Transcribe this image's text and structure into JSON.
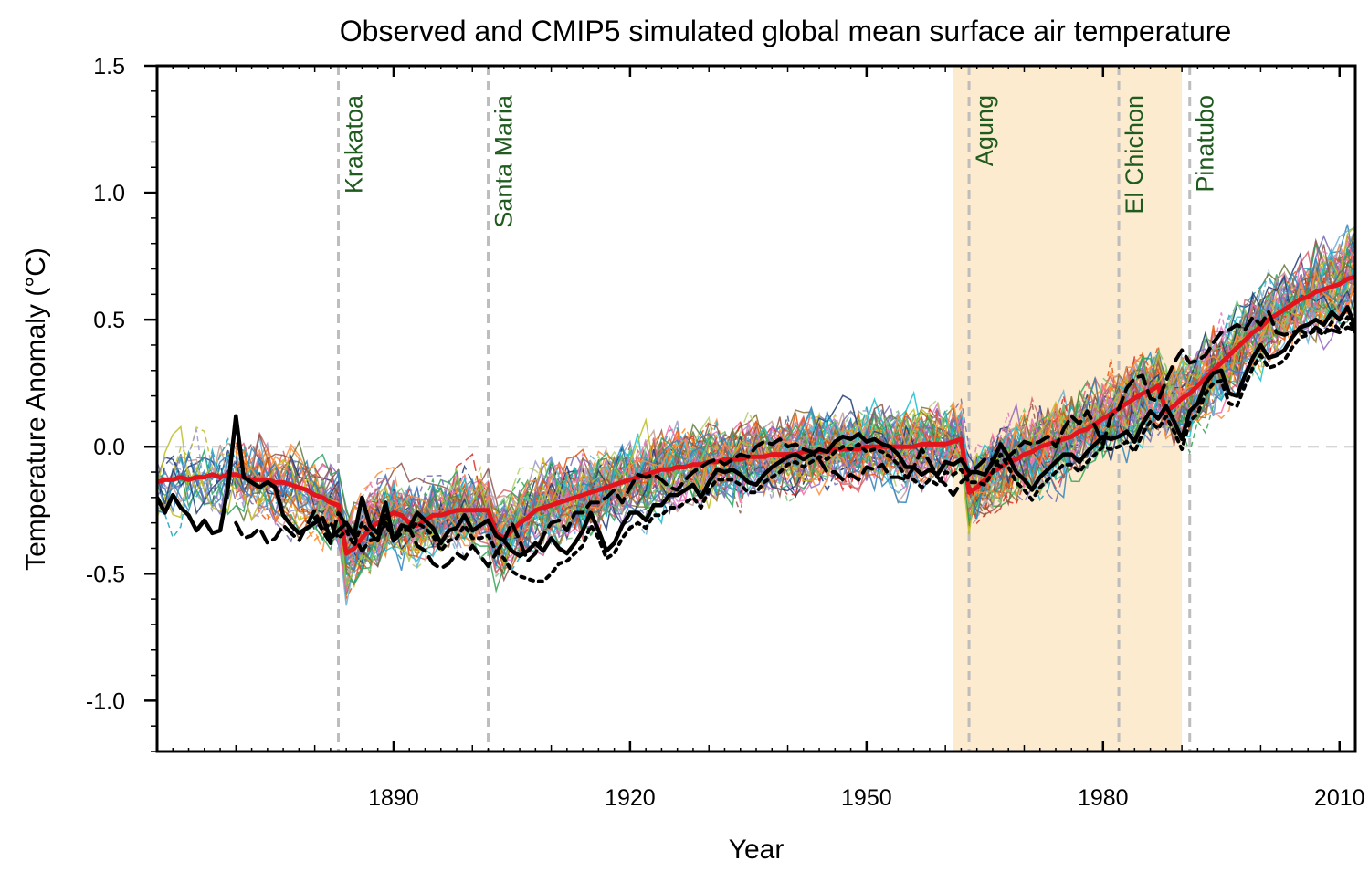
{
  "chart_data": {
    "type": "line",
    "title": "Observed and CMIP5 simulated global mean surface air temperature",
    "xlabel": "Year",
    "ylabel": "Temperature Anomaly (°C)",
    "xlim": [
      1860,
      2012
    ],
    "ylim": [
      -1.2,
      1.5
    ],
    "xticks": [
      1890,
      1920,
      1950,
      1980,
      2010
    ],
    "xtick_labels": [
      "1890",
      "1920",
      "1950",
      "1980",
      "2010"
    ],
    "yticks": [
      -1.0,
      -0.5,
      0.0,
      0.5,
      1.0,
      1.5
    ],
    "ytick_labels": [
      "-1.0",
      "-0.5",
      "0.0",
      "0.5",
      "1.0",
      "1.5"
    ],
    "grid": false,
    "zero_line": true,
    "shaded_period": {
      "from": 1961,
      "to": 1990,
      "color": "#fcebcf"
    },
    "volcanoes": [
      {
        "name": "Krakatoa",
        "year": 1883
      },
      {
        "name": "Santa Maria",
        "year": 1902
      },
      {
        "name": "Agung",
        "year": 1963
      },
      {
        "name": "El Chichon",
        "year": 1982
      },
      {
        "name": "Pinatubo",
        "year": 1991
      }
    ],
    "colors": {
      "multi_model_mean": "#e3141c",
      "observations": "#000000",
      "volcano_line": "#bdbdbd",
      "volcano_text": "#1f5a1f",
      "zero_line": "#c8c8c8"
    },
    "observations": [
      {
        "style": "solid",
        "years": [
          1860,
          2012
        ],
        "values": [
          -0.2,
          -0.26,
          -0.19,
          -0.24,
          -0.27,
          -0.33,
          -0.29,
          -0.34,
          -0.33,
          -0.16,
          0.12,
          -0.12,
          -0.14,
          -0.16,
          -0.14,
          -0.16,
          -0.27,
          -0.31,
          -0.34,
          -0.32,
          -0.3,
          -0.28,
          -0.36,
          -0.33,
          -0.3,
          -0.35,
          -0.2,
          -0.31,
          -0.34,
          -0.22,
          -0.37,
          -0.31,
          -0.32,
          -0.26,
          -0.29,
          -0.32,
          -0.38,
          -0.33,
          -0.32,
          -0.27,
          -0.33,
          -0.31,
          -0.29,
          -0.35,
          -0.37,
          -0.41,
          -0.43,
          -0.41,
          -0.38,
          -0.41,
          -0.36,
          -0.4,
          -0.42,
          -0.38,
          -0.33,
          -0.26,
          -0.33,
          -0.41,
          -0.38,
          -0.31,
          -0.26,
          -0.26,
          -0.29,
          -0.23,
          -0.23,
          -0.19,
          -0.19,
          -0.17,
          -0.15,
          -0.2,
          -0.14,
          -0.09,
          -0.1,
          -0.09,
          -0.11,
          -0.14,
          -0.15,
          -0.11,
          -0.08,
          -0.06,
          -0.04,
          -0.03,
          -0.05,
          -0.03,
          -0.01,
          -0.02,
          0.02,
          0.04,
          0.03,
          0.05,
          0.02,
          0.03,
          0.01,
          0.0,
          -0.03,
          -0.08,
          -0.08,
          -0.11,
          -0.09,
          -0.11,
          -0.06,
          -0.07,
          -0.05,
          -0.1,
          -0.1,
          -0.11,
          -0.06,
          0.01,
          -0.04,
          -0.1,
          -0.13,
          -0.17,
          -0.12,
          -0.09,
          -0.06,
          -0.03,
          -0.03,
          -0.06,
          -0.02,
          0.01,
          0.04,
          0.03,
          0.04,
          0.06,
          0.02,
          0.09,
          0.14,
          0.11,
          0.16,
          0.1,
          0.03,
          0.14,
          0.17,
          0.25,
          0.29,
          0.3,
          0.21,
          0.2,
          0.28,
          0.35,
          0.4,
          0.35,
          0.36,
          0.38,
          0.43,
          0.47,
          0.48,
          0.5,
          0.48,
          0.53,
          0.5,
          0.55,
          0.47
        ]
      },
      {
        "style": "dashed",
        "years": [
          1870,
          2012
        ],
        "values": [
          -0.3,
          -0.36,
          -0.35,
          -0.32,
          -0.38,
          -0.36,
          -0.31,
          -0.34,
          -0.37,
          -0.31,
          -0.25,
          -0.33,
          -0.38,
          -0.26,
          -0.31,
          -0.35,
          -0.41,
          -0.37,
          -0.36,
          -0.3,
          -0.37,
          -0.34,
          -0.32,
          -0.39,
          -0.41,
          -0.46,
          -0.48,
          -0.46,
          -0.42,
          -0.44,
          -0.39,
          -0.43,
          -0.47,
          -0.42,
          -0.37,
          -0.3,
          -0.37,
          -0.45,
          -0.42,
          -0.35,
          -0.3,
          -0.29,
          -0.33,
          -0.26,
          -0.26,
          -0.22,
          -0.22,
          -0.2,
          -0.17,
          -0.22,
          -0.16,
          -0.11,
          -0.12,
          -0.11,
          -0.13,
          -0.16,
          -0.17,
          -0.13,
          -0.1,
          -0.08,
          -0.06,
          -0.05,
          -0.07,
          -0.05,
          -0.03,
          -0.04,
          0.0,
          0.02,
          0.01,
          0.03,
          0.0,
          0.01,
          -0.01,
          -0.02,
          -0.05,
          -0.1,
          -0.1,
          -0.13,
          -0.11,
          -0.13,
          -0.08,
          -0.09,
          -0.07,
          -0.12,
          -0.12,
          -0.13,
          -0.08,
          -0.01,
          -0.06,
          -0.12,
          -0.15,
          -0.19,
          -0.14,
          -0.11,
          -0.08,
          -0.05,
          -0.05,
          -0.08,
          -0.04,
          -0.01,
          0.02,
          0.01,
          0.02,
          0.04,
          0.0,
          0.07,
          0.12,
          0.09,
          0.14,
          0.08,
          0.01,
          0.12,
          0.15,
          0.23,
          0.27,
          0.28,
          0.19,
          0.18,
          0.26,
          0.33,
          0.38,
          0.33,
          0.34,
          0.36,
          0.41,
          0.45,
          0.46,
          0.48,
          0.46,
          0.51,
          0.48,
          0.53,
          0.45,
          0.44,
          0.45,
          0.46,
          0.44,
          0.47,
          0.45,
          0.46,
          0.45,
          0.47,
          0.46
        ]
      },
      {
        "style": "dotted",
        "years": [
          1880,
          2012
        ],
        "values": [
          -0.28,
          -0.33,
          -0.3,
          -0.36,
          -0.33,
          -0.39,
          -0.3,
          -0.34,
          -0.37,
          -0.27,
          -0.37,
          -0.32,
          -0.33,
          -0.3,
          -0.32,
          -0.35,
          -0.41,
          -0.37,
          -0.36,
          -0.31,
          -0.36,
          -0.36,
          -0.35,
          -0.41,
          -0.44,
          -0.49,
          -0.51,
          -0.52,
          -0.53,
          -0.53,
          -0.5,
          -0.46,
          -0.45,
          -0.42,
          -0.39,
          -0.31,
          -0.36,
          -0.44,
          -0.42,
          -0.36,
          -0.32,
          -0.3,
          -0.32,
          -0.27,
          -0.27,
          -0.24,
          -0.24,
          -0.22,
          -0.2,
          -0.24,
          -0.17,
          -0.13,
          -0.13,
          -0.13,
          -0.15,
          -0.18,
          -0.18,
          -0.14,
          -0.12,
          -0.1,
          -0.07,
          -0.06,
          -0.08,
          -0.06,
          -0.04,
          -0.05,
          -0.02,
          0.0,
          -0.01,
          0.01,
          -0.02,
          -0.01,
          -0.02,
          -0.04,
          -0.07,
          -0.12,
          -0.13,
          -0.16,
          -0.13,
          -0.15,
          -0.1,
          -0.11,
          -0.09,
          -0.14,
          -0.14,
          -0.15,
          -0.1,
          -0.03,
          -0.08,
          -0.14,
          -0.17,
          -0.21,
          -0.16,
          -0.13,
          -0.1,
          -0.07,
          -0.07,
          -0.1,
          -0.06,
          -0.03,
          0.0,
          -0.01,
          0.0,
          0.02,
          -0.02,
          0.05,
          0.1,
          0.07,
          0.12,
          0.06,
          -0.01,
          0.1,
          0.13,
          0.21,
          0.25,
          0.26,
          0.17,
          0.16,
          0.24,
          0.31,
          0.36,
          0.31,
          0.32,
          0.34,
          0.39,
          0.43,
          0.44,
          0.46,
          0.44,
          0.49,
          0.46,
          0.51,
          0.45
        ]
      }
    ],
    "multi_model_mean": {
      "years": [
        1860,
        2012
      ],
      "values": [
        -0.14,
        -0.13,
        -0.13,
        -0.12,
        -0.13,
        -0.12,
        -0.12,
        -0.11,
        -0.12,
        -0.11,
        -0.11,
        -0.12,
        -0.13,
        -0.13,
        -0.13,
        -0.14,
        -0.14,
        -0.15,
        -0.16,
        -0.17,
        -0.19,
        -0.2,
        -0.22,
        -0.23,
        -0.42,
        -0.4,
        -0.36,
        -0.32,
        -0.3,
        -0.28,
        -0.26,
        -0.27,
        -0.3,
        -0.31,
        -0.29,
        -0.27,
        -0.27,
        -0.26,
        -0.25,
        -0.25,
        -0.25,
        -0.25,
        -0.25,
        -0.34,
        -0.36,
        -0.33,
        -0.3,
        -0.28,
        -0.25,
        -0.24,
        -0.23,
        -0.22,
        -0.21,
        -0.2,
        -0.19,
        -0.18,
        -0.17,
        -0.16,
        -0.15,
        -0.14,
        -0.13,
        -0.12,
        -0.11,
        -0.1,
        -0.09,
        -0.09,
        -0.08,
        -0.08,
        -0.07,
        -0.07,
        -0.06,
        -0.06,
        -0.05,
        -0.05,
        -0.05,
        -0.04,
        -0.04,
        -0.04,
        -0.03,
        -0.03,
        -0.03,
        -0.03,
        -0.02,
        -0.02,
        -0.02,
        -0.02,
        -0.01,
        -0.01,
        -0.01,
        -0.01,
        0.0,
        0.0,
        0.0,
        0.0,
        0.0,
        0.0,
        0.0,
        0.01,
        0.01,
        0.01,
        0.01,
        0.02,
        0.03,
        -0.18,
        -0.16,
        -0.13,
        -0.1,
        -0.08,
        -0.06,
        -0.05,
        -0.03,
        -0.02,
        0.0,
        0.01,
        0.02,
        0.03,
        0.04,
        0.06,
        0.07,
        0.09,
        0.11,
        0.13,
        0.15,
        0.17,
        0.19,
        0.21,
        0.22,
        0.24,
        0.14,
        0.16,
        0.19,
        0.21,
        0.24,
        0.27,
        0.3,
        0.33,
        0.36,
        0.39,
        0.42,
        0.45,
        0.47,
        0.5,
        0.52,
        0.54,
        0.56,
        0.58,
        0.59,
        0.61,
        0.62,
        0.63,
        0.64,
        0.66,
        0.67,
        0.69,
        0.71,
        0.73,
        0.74
      ]
    },
    "model_runs": {
      "count": 60,
      "years": [
        1860,
        2012
      ]
    }
  }
}
